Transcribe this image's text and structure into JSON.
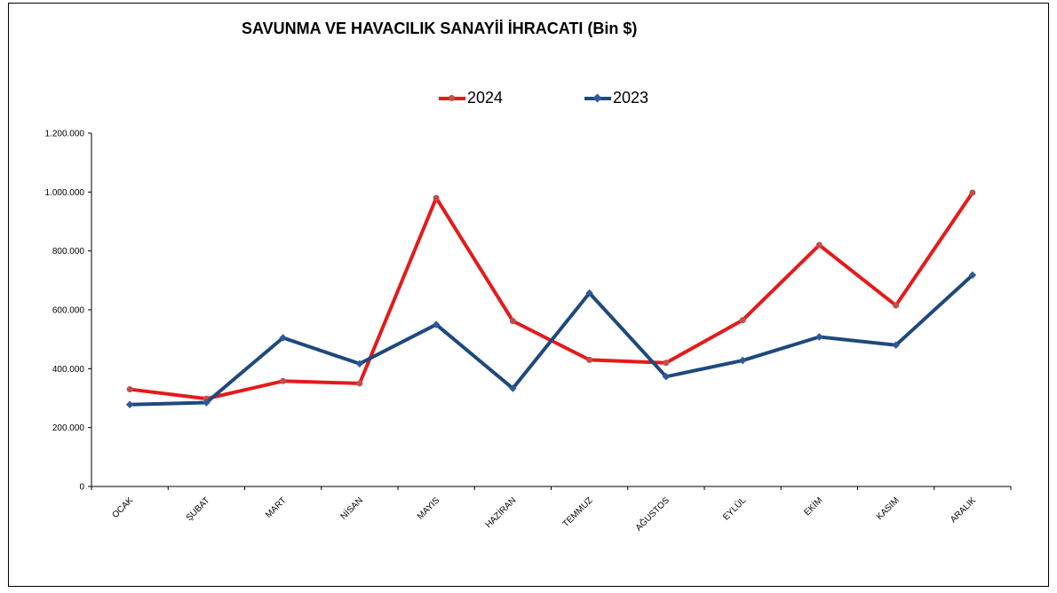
{
  "chart_data": {
    "type": "line",
    "title": "SAVUNMA VE HAVACILIK SANAYİİ İHRACATI (Bin $)",
    "categories": [
      "OCAK",
      "ŞUBAT",
      "MART",
      "NİSAN",
      "MAYIS",
      "HAZİRAN",
      "TEMMUZ",
      "AĞUSTOS",
      "EYLÜL",
      "EKİM",
      "KASIM",
      "ARALIK"
    ],
    "series": [
      {
        "name": "2024",
        "color": "#e31b1b",
        "marker_color": "#c0504d",
        "marker": "circle",
        "values": [
          330000,
          298000,
          358000,
          350000,
          980000,
          562000,
          430000,
          420000,
          565000,
          820000,
          615000,
          998000
        ]
      },
      {
        "name": "2023",
        "color": "#1f497d",
        "marker_color": "#2e5a9a",
        "marker": "diamond",
        "values": [
          278000,
          285000,
          505000,
          417000,
          550000,
          333000,
          657000,
          373000,
          428000,
          508000,
          480000,
          718000
        ]
      }
    ],
    "ylim": [
      0,
      1200000
    ],
    "yticks": [
      0,
      200000,
      400000,
      600000,
      800000,
      1000000,
      1200000
    ],
    "ytick_labels": [
      "0",
      "200.000",
      "400.000",
      "600.000",
      "800.000",
      "1.000.000",
      "1.200.000"
    ],
    "grid": false,
    "legend_position": "top-center"
  }
}
